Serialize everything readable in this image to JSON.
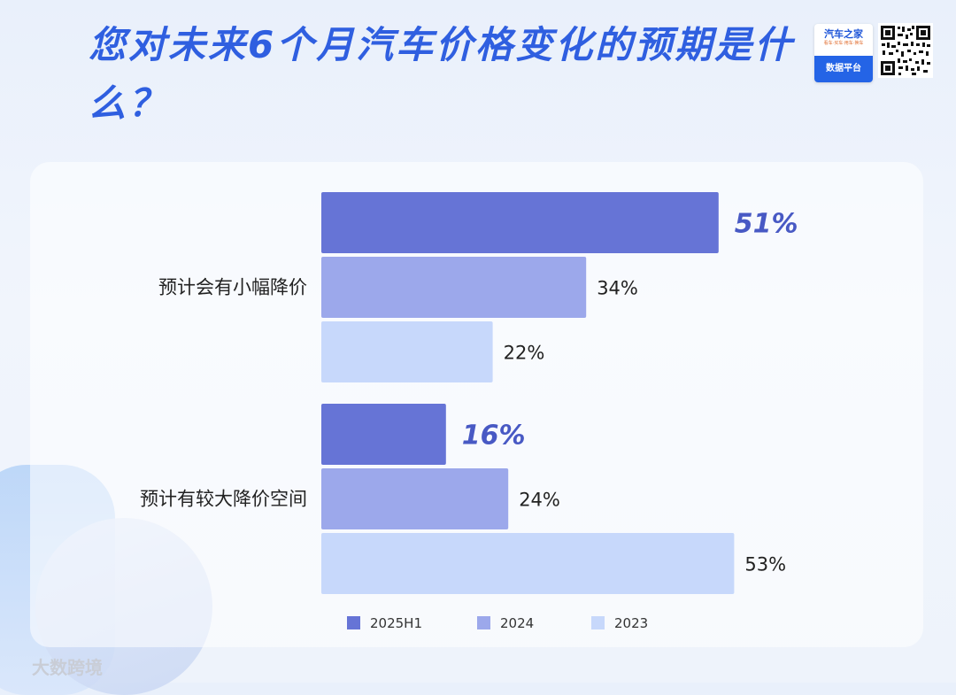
{
  "title": "您对未来6个月汽车价格变化的预期是什么？",
  "brand": {
    "name": "汽车之家",
    "tagline": "看车·买车·用车·换车",
    "platform": "数据平台"
  },
  "watermark": "大数跨境",
  "colors": {
    "2025H1": "#6674d6",
    "2024": "#9ca8eb",
    "2023": "#c7d8fb",
    "accent": "#4859c4",
    "title": "#2f5fe0"
  },
  "chart_data": {
    "type": "bar",
    "orientation": "horizontal",
    "categories": [
      "预计会有小幅降价",
      "预计有较大降价空间"
    ],
    "series": [
      {
        "name": "2025H1",
        "values": [
          51,
          16
        ],
        "labels": [
          "51%",
          "16%"
        ]
      },
      {
        "name": "2024",
        "values": [
          34,
          24
        ],
        "labels": [
          "34%",
          "24%"
        ]
      },
      {
        "name": "2023",
        "values": [
          22,
          53
        ],
        "labels": [
          "22%",
          "53%"
        ]
      }
    ],
    "unit": "%",
    "xlim": [
      0,
      60
    ],
    "grid": false,
    "legend": "bottom"
  }
}
